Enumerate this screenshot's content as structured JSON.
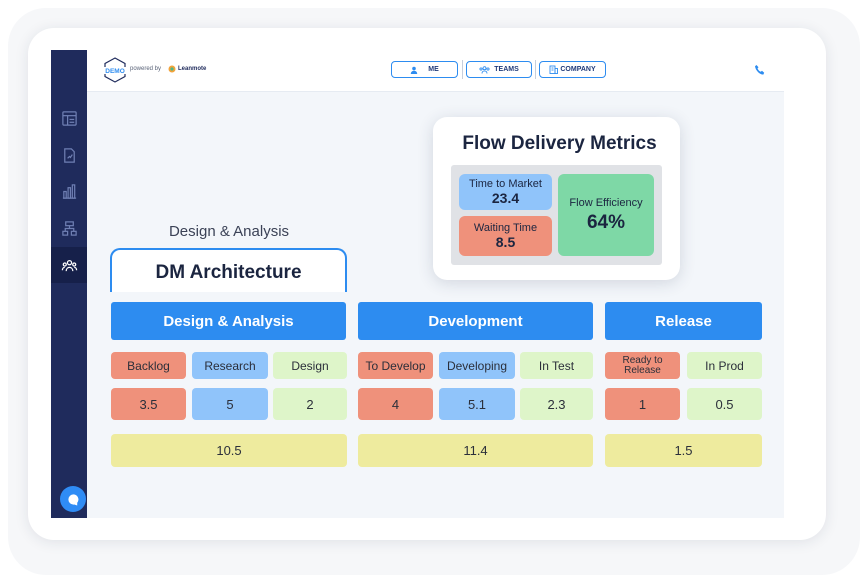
{
  "header": {
    "logo_text": "DEMO",
    "powered_by": "powered by",
    "brand": "Leanmote",
    "tabs": [
      {
        "label": "ME",
        "icon": "person-icon"
      },
      {
        "label": "TEAMS",
        "icon": "teams-icon"
      },
      {
        "label": "COMPANY",
        "icon": "building-icon"
      }
    ]
  },
  "sidebar": {
    "items": [
      {
        "icon": "dashboard-icon"
      },
      {
        "icon": "report-icon"
      },
      {
        "icon": "bar-chart-icon"
      },
      {
        "icon": "hierarchy-icon"
      },
      {
        "icon": "people-icon",
        "active": true
      }
    ]
  },
  "metrics": {
    "title": "Flow Delivery Metrics",
    "time_to_market": {
      "label": "Time to Market",
      "value": "23.4"
    },
    "waiting_time": {
      "label": "Waiting Time",
      "value": "8.5"
    },
    "flow_efficiency": {
      "label": "Flow Efficiency",
      "value": "64%"
    }
  },
  "board": {
    "stage_label": "Design & Analysis",
    "team_title": "DM Architecture",
    "phases": [
      {
        "name": "Design & Analysis",
        "total": "10.5",
        "columns": [
          {
            "label": "Backlog",
            "value": "3.5",
            "color": "#ef917b"
          },
          {
            "label": "Research",
            "value": "5",
            "color": "#90c4fa"
          },
          {
            "label": "Design",
            "value": "2",
            "color": "#def5c9"
          }
        ]
      },
      {
        "name": "Development",
        "total": "11.4",
        "columns": [
          {
            "label": "To Develop",
            "value": "4",
            "color": "#ef917b"
          },
          {
            "label": "Developing",
            "value": "5.1",
            "color": "#90c4fa"
          },
          {
            "label": "In Test",
            "value": "2.3",
            "color": "#def5c9"
          }
        ]
      },
      {
        "name": "Release",
        "total": "1.5",
        "columns": [
          {
            "label": "Ready to Release",
            "value": "1",
            "color": "#ef917b"
          },
          {
            "label": "In Prod",
            "value": "0.5",
            "color": "#def5c9"
          }
        ]
      }
    ]
  },
  "colors": {
    "accent": "#2d8cf0",
    "sidebar": "#1f2b5c",
    "total": "#eeeb9e",
    "metric_blue": "#90c4fa",
    "metric_red": "#ef917b",
    "metric_green": "#7ed8a6"
  }
}
